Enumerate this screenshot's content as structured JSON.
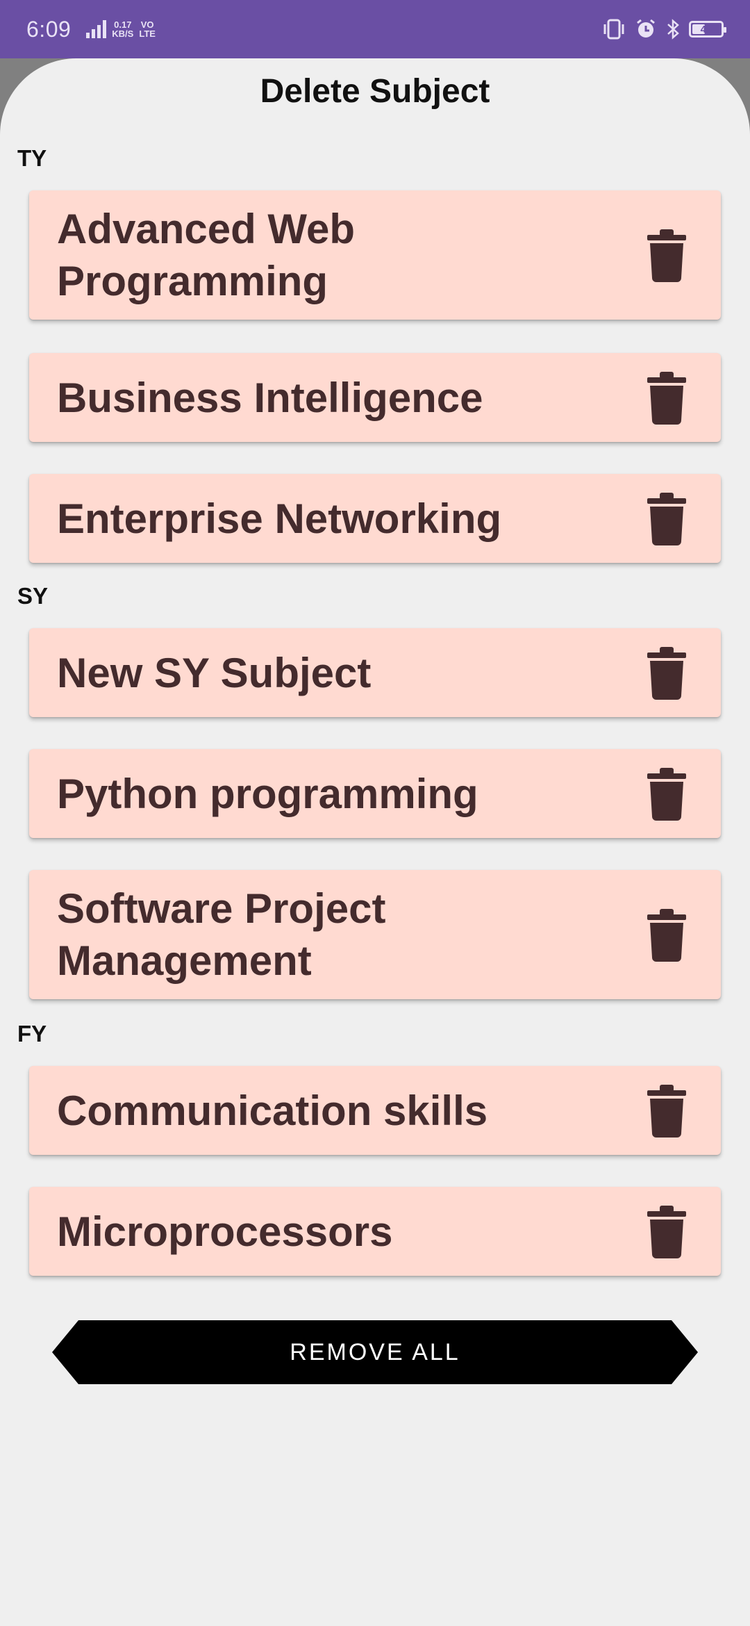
{
  "status_bar": {
    "time": "6:09",
    "network_type": "4G",
    "speed_value": "0.17",
    "speed_unit": "KB/S",
    "volte_top": "VO",
    "volte_bottom": "LTE",
    "battery": "40"
  },
  "title": "Delete Subject",
  "sections": [
    {
      "label": "TY",
      "subjects": [
        "Advanced Web Programming",
        "Business Intelligence",
        "Enterprise Networking"
      ]
    },
    {
      "label": "SY",
      "subjects": [
        "New SY Subject",
        "Python programming",
        "Software Project Management"
      ]
    },
    {
      "label": "FY",
      "subjects": [
        "Communication skills",
        "Microprocessors"
      ]
    }
  ],
  "remove_all_label": "REMOVE ALL",
  "colors": {
    "status_bar": "#6a4fa4",
    "card_bg": "#ffdad1",
    "card_text": "#442b2d",
    "sheet_bg": "#efefef",
    "button_bg": "#000000"
  }
}
